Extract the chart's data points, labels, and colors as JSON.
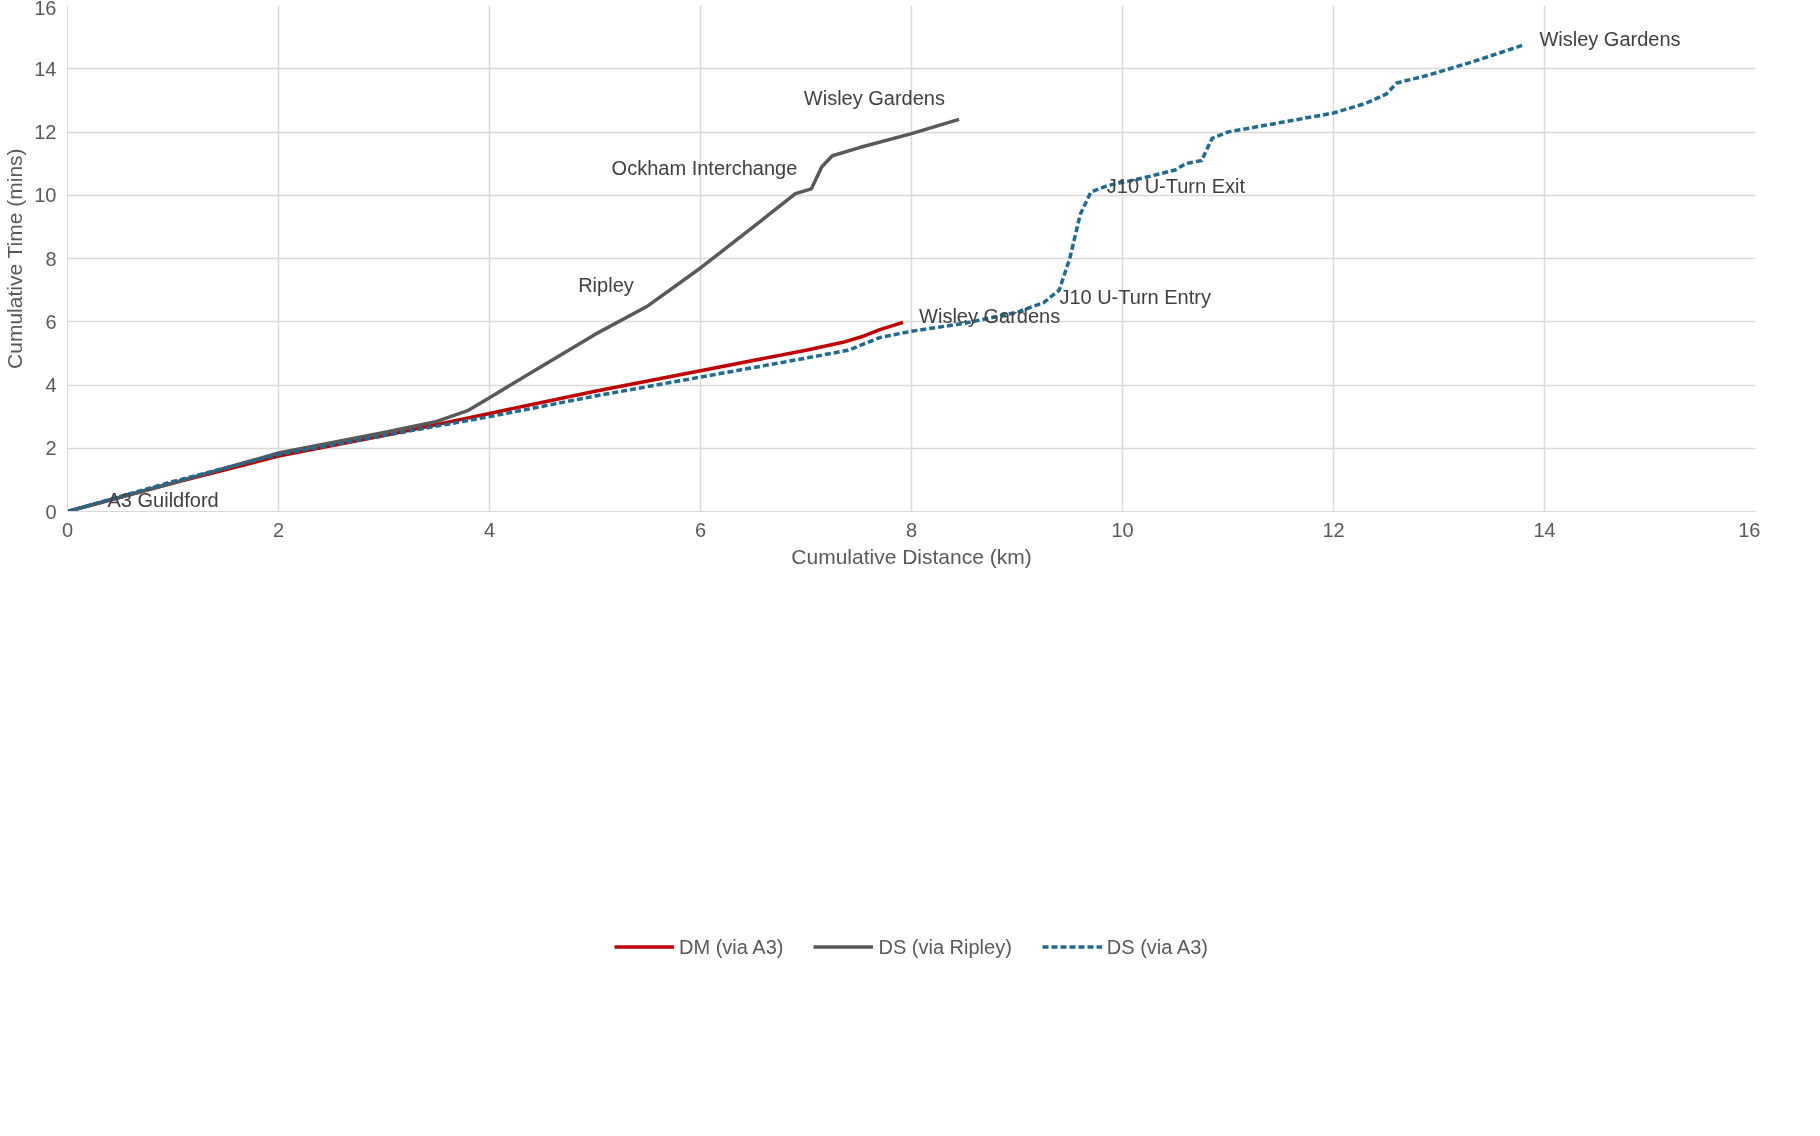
{
  "chart_data": {
    "type": "line",
    "xlabel": "Cumulative Distance (km)",
    "ylabel": "Cumulative Time (mins)",
    "xlim": [
      0,
      16
    ],
    "ylim": [
      0,
      16
    ],
    "xticks": [
      0,
      2,
      4,
      6,
      8,
      10,
      12,
      14,
      16
    ],
    "yticks": [
      0,
      2,
      4,
      6,
      8,
      10,
      12,
      14,
      16
    ],
    "grid": true,
    "legend": "bottom",
    "marker": "none",
    "series": [
      {
        "name": "DM (via A3)",
        "color": "#c00000",
        "line_style": "solid",
        "x": [
          0,
          1,
          2,
          3,
          4,
          5,
          6,
          7,
          7.35,
          7.55,
          7.7,
          7.92
        ],
        "values": [
          0,
          0.9,
          1.75,
          2.4,
          3.1,
          3.8,
          4.45,
          5.1,
          5.35,
          5.55,
          5.75,
          5.98
        ]
      },
      {
        "name": "DS (via Ripley)",
        "color": "#595959",
        "line_style": "solid",
        "x": [
          0,
          1,
          2,
          3,
          3.5,
          3.8,
          4,
          4.5,
          5,
          5.5,
          6,
          6.5,
          6.9,
          7.05,
          7.15,
          7.25,
          7.5,
          8,
          8.45
        ],
        "values": [
          0,
          0.9,
          1.85,
          2.5,
          2.85,
          3.2,
          3.6,
          4.6,
          5.6,
          6.5,
          7.7,
          9.0,
          10.05,
          10.2,
          10.9,
          11.25,
          11.5,
          11.95,
          12.4
        ]
      },
      {
        "name": "DS (via A3)",
        "color": "#1f6b8f",
        "line_style": "dashed",
        "x": [
          0,
          1,
          2,
          3,
          4,
          5,
          6,
          7,
          7.4,
          7.55,
          7.7,
          8,
          8.5,
          9,
          9.25,
          9.4,
          9.5,
          9.6,
          9.7,
          9.85,
          10.2,
          10.5,
          10.6,
          10.75,
          10.85,
          11.0,
          11.5,
          12,
          12.3,
          12.5,
          12.6,
          12.9,
          13.3,
          13.8
        ],
        "values": [
          0,
          0.95,
          1.8,
          2.4,
          3.0,
          3.65,
          4.25,
          4.85,
          5.1,
          5.3,
          5.5,
          5.7,
          5.95,
          6.3,
          6.6,
          7.0,
          8.0,
          9.4,
          10.1,
          10.3,
          10.55,
          10.8,
          11.0,
          11.1,
          11.8,
          12.0,
          12.3,
          12.6,
          12.9,
          13.2,
          13.55,
          13.8,
          14.2,
          14.75
        ]
      }
    ],
    "annotations": [
      {
        "text": "A3 Guildford",
        "x": 0,
        "y": 0
      },
      {
        "text": "Ripley",
        "x": 5.5,
        "y": 6.5
      },
      {
        "text": "Ockham Interchange",
        "x": 7.05,
        "y": 10.2
      },
      {
        "text": "Wisley Gardens",
        "x": 8.45,
        "y": 12.4
      },
      {
        "text": "Wisley Gardens",
        "x": 7.92,
        "y": 5.98
      },
      {
        "text": "J10 U-Turn Entry",
        "x": 9.25,
        "y": 6.6
      },
      {
        "text": "J10 U-Turn Exit",
        "x": 9.7,
        "y": 10.1
      },
      {
        "text": "Wisley Gardens",
        "x": 13.8,
        "y": 14.75
      }
    ]
  }
}
